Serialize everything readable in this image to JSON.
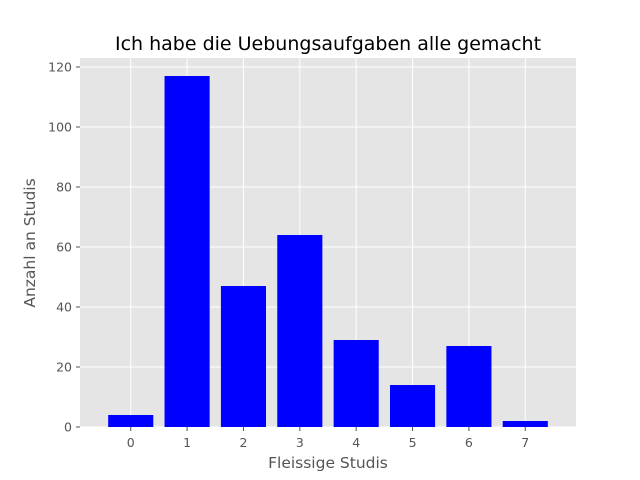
{
  "chart_data": {
    "type": "bar",
    "title": "Ich habe die Uebungsaufgaben alle gemacht",
    "xlabel": "Fleissige Studis",
    "ylabel": "Anzahl an Studis",
    "categories": [
      "0",
      "1",
      "2",
      "3",
      "4",
      "5",
      "6",
      "7"
    ],
    "values": [
      4,
      117,
      47,
      64,
      29,
      14,
      27,
      2
    ],
    "ylim": [
      0,
      123
    ],
    "yticks": [
      "0",
      "20",
      "40",
      "60",
      "80",
      "100",
      "120"
    ],
    "grid": true,
    "bar_color": "#0000ff",
    "background_color": "#e5e5e5",
    "grid_color": "#ffffff"
  }
}
